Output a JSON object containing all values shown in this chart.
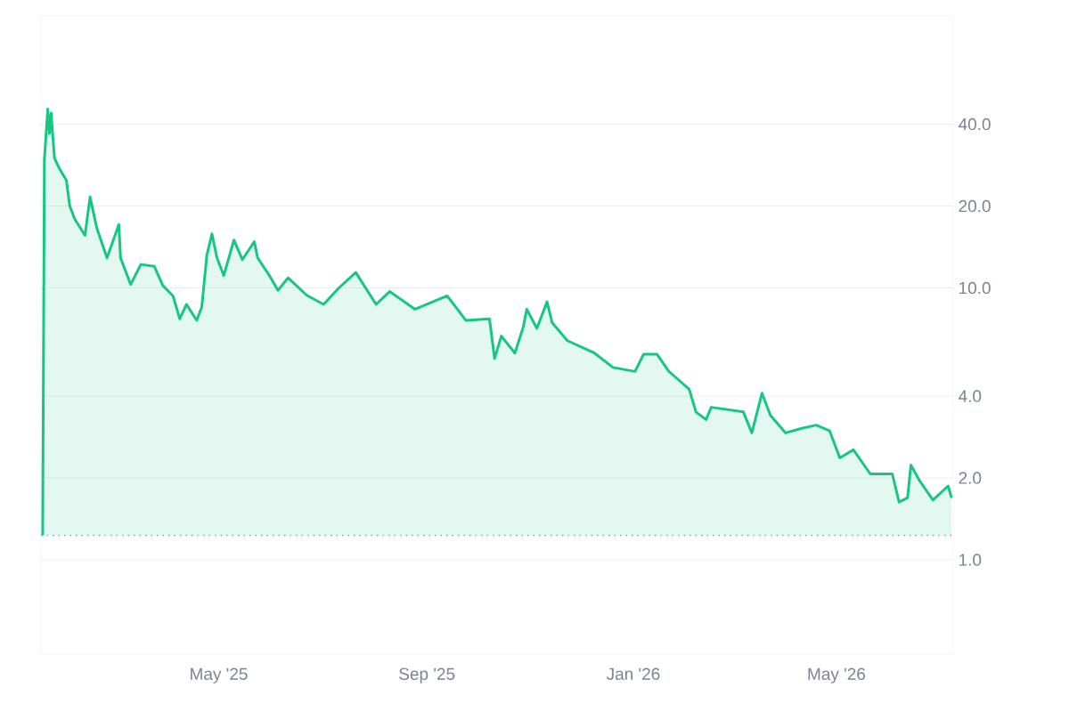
{
  "chart_data": {
    "type": "area",
    "color": "#16c784",
    "log": "y",
    "grid": "y",
    "x": [
      "2025-01-17",
      "2025-01-18",
      "2025-01-20",
      "2025-01-21",
      "2025-01-22",
      "2025-01-23",
      "2025-01-24",
      "2025-01-27",
      "2025-01-31",
      "2025-02-02",
      "2025-02-05",
      "2025-02-11",
      "2025-02-14",
      "2025-02-18",
      "2025-02-24",
      "2025-03-03",
      "2025-03-04",
      "2025-03-10",
      "2025-03-16",
      "2025-03-24",
      "2025-03-29",
      "2025-04-04",
      "2025-04-08",
      "2025-04-12",
      "2025-04-18",
      "2025-04-21",
      "2025-04-24",
      "2025-04-27",
      "2025-04-30",
      "2025-05-04",
      "2025-05-10",
      "2025-05-15",
      "2025-05-22",
      "2025-05-24",
      "2025-05-31",
      "2025-06-05",
      "2025-06-11",
      "2025-06-22",
      "2025-07-02",
      "2025-07-11",
      "2025-07-21",
      "2025-08-02",
      "2025-08-10",
      "2025-08-25",
      "2025-09-13",
      "2025-09-24",
      "2025-10-08",
      "2025-10-11",
      "2025-10-15",
      "2025-10-23",
      "2025-10-28",
      "2025-10-30",
      "2025-11-05",
      "2025-11-11",
      "2025-11-14",
      "2025-11-23",
      "2025-12-09",
      "2025-12-20",
      "2026-01-02",
      "2026-01-07",
      "2026-01-15",
      "2026-01-22",
      "2026-02-03",
      "2026-02-07",
      "2026-02-13",
      "2026-02-16",
      "2026-03-07",
      "2026-03-12",
      "2026-03-18",
      "2026-03-23",
      "2026-04-01",
      "2026-04-10",
      "2026-04-19",
      "2026-04-27",
      "2026-05-03",
      "2026-05-11",
      "2026-05-21",
      "2026-06-03",
      "2026-06-07",
      "2026-06-12",
      "2026-06-14",
      "2026-06-19",
      "2026-06-27",
      "2026-07-06",
      "2026-07-08"
    ],
    "values": [
      1.23,
      29.6,
      45.5,
      37,
      44,
      36,
      30,
      27.4,
      24.9,
      20,
      17.9,
      15.6,
      21.6,
      16.6,
      12.9,
      17.1,
      12.9,
      10.3,
      12.2,
      12,
      10.2,
      9.35,
      7.7,
      8.7,
      7.6,
      8.5,
      13.2,
      15.8,
      12.9,
      11.1,
      15,
      12.7,
      14.8,
      12.9,
      11.1,
      9.8,
      10.9,
      9.4,
      8.7,
      10,
      11.4,
      8.7,
      9.7,
      8.35,
      9.35,
      7.6,
      7.7,
      5.5,
      6.65,
      5.76,
      7.2,
      8.35,
      7.1,
      8.9,
      7.45,
      6.4,
      5.76,
      5.1,
      4.93,
      5.7,
      5.7,
      4.93,
      4.24,
      3.5,
      3.28,
      3.64,
      3.5,
      2.93,
      4.1,
      3.4,
      2.93,
      3.04,
      3.13,
      2.98,
      2.37,
      2.54,
      2.07,
      2.07,
      1.63,
      1.69,
      2.23,
      1.96,
      1.66,
      1.87,
      1.69
    ],
    "xlim": [
      "2025-01-16",
      "2026-07-09"
    ],
    "ylim": [
      0.45,
      100
    ],
    "xticks": [
      {
        "value": "2025-05-01",
        "label": "May '25"
      },
      {
        "value": "2025-09-01",
        "label": "Sep '25"
      },
      {
        "value": "2026-01-01",
        "label": "Jan '26"
      },
      {
        "value": "2026-05-01",
        "label": "May '26"
      }
    ],
    "yticks": [
      {
        "value": 1,
        "label": "1.0"
      },
      {
        "value": 2,
        "label": "2.0"
      },
      {
        "value": 4,
        "label": "4.0"
      },
      {
        "value": 10,
        "label": "10.0"
      },
      {
        "value": 20,
        "label": "20.0"
      },
      {
        "value": 40,
        "label": "40.0"
      }
    ],
    "ref_lines": [
      {
        "axis": "y",
        "value": 1.23,
        "color": "#999999",
        "line_style": "dotted"
      }
    ]
  }
}
